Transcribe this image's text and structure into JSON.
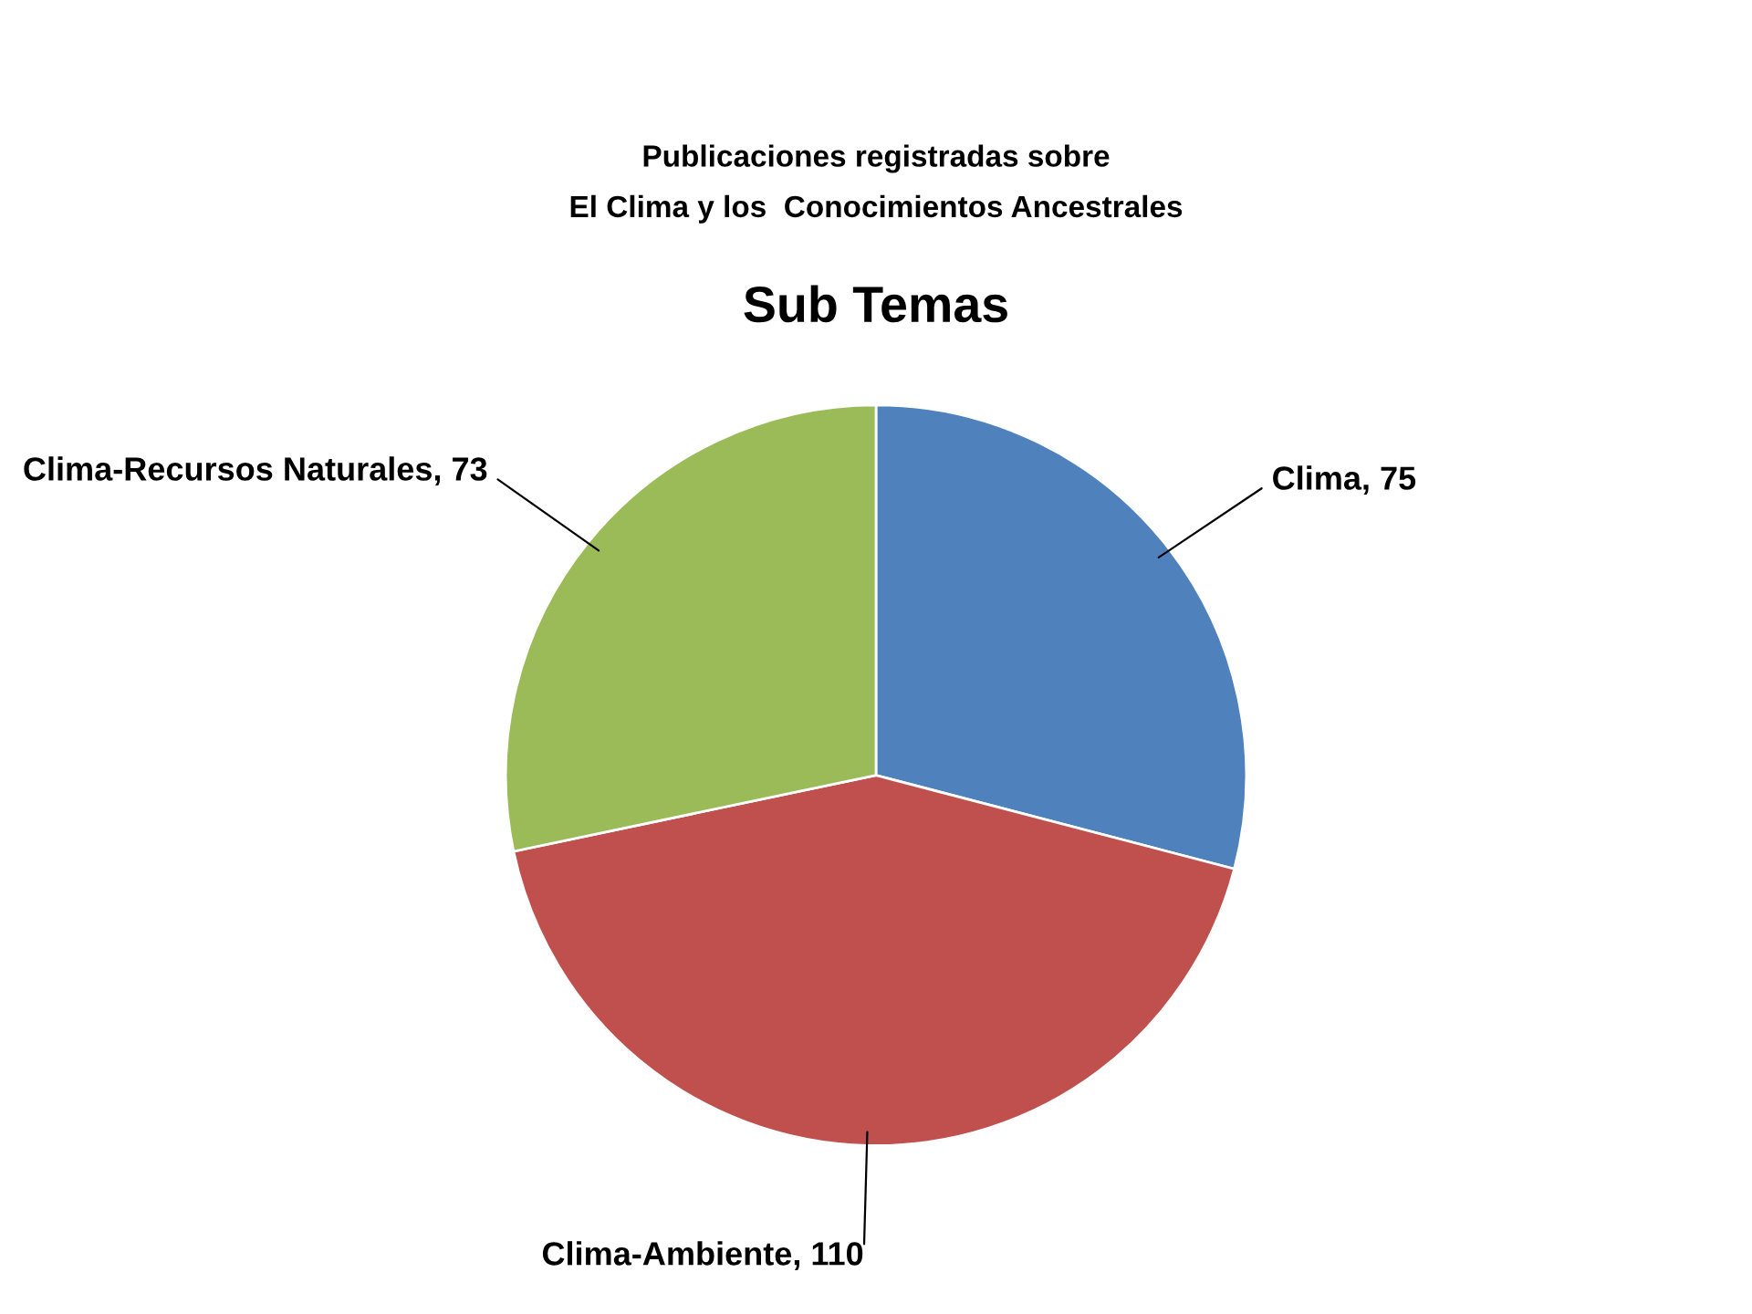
{
  "chart_data": {
    "type": "pie",
    "title": "Publicaciones registradas sobre\nEl Clima y los  Conocimientos Ancestrales",
    "subtitle": "Sub Temas",
    "categories": [
      "Clima",
      "Clima-Ambiente",
      "Clima-Recursos Naturales"
    ],
    "values": [
      75,
      110,
      73
    ],
    "colors": [
      "#4f81bd",
      "#c0504d",
      "#9bbb59"
    ],
    "value_labels": [
      ", 75",
      ", 110",
      ", 73"
    ],
    "legend": false
  }
}
